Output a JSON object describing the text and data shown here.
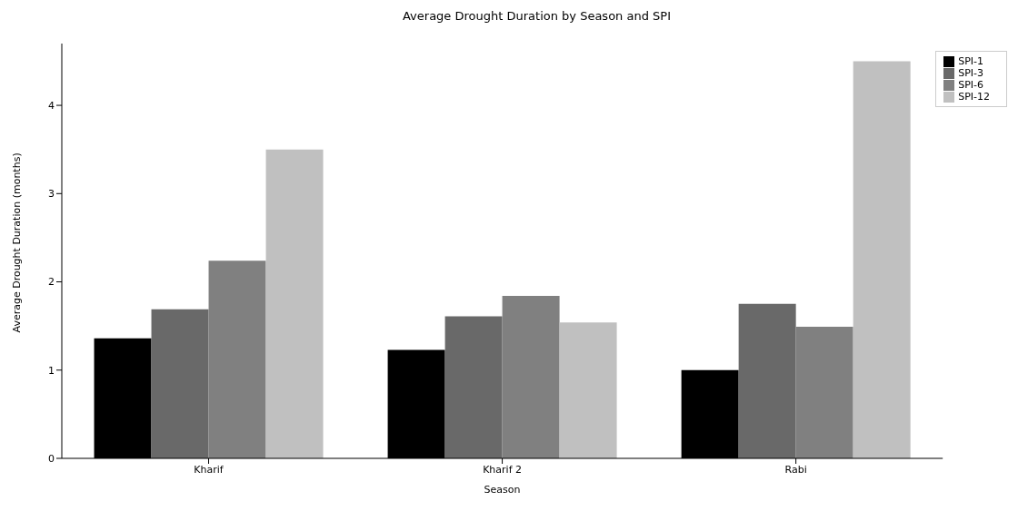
{
  "chart_data": {
    "type": "bar",
    "title": "Average Drought Duration by Season and SPI",
    "xlabel": "Season",
    "ylabel": "Average Drought Duration (months)",
    "categories": [
      "Kharif",
      "Kharif 2",
      "Rabi"
    ],
    "series": [
      {
        "name": "SPI-1",
        "color": "#000000",
        "values": [
          1.36,
          1.23,
          1.0
        ]
      },
      {
        "name": "SPI-3",
        "color": "#696969",
        "values": [
          1.69,
          1.61,
          1.75
        ]
      },
      {
        "name": "SPI-6",
        "color": "#808080",
        "values": [
          2.24,
          1.84,
          1.49
        ]
      },
      {
        "name": "SPI-12",
        "color": "#c0c0c0",
        "values": [
          3.5,
          1.54,
          4.5
        ]
      }
    ],
    "ylim": [
      0,
      4.7
    ],
    "yticks": [
      0,
      1,
      2,
      3,
      4
    ],
    "grid": false,
    "legend": "top right"
  }
}
